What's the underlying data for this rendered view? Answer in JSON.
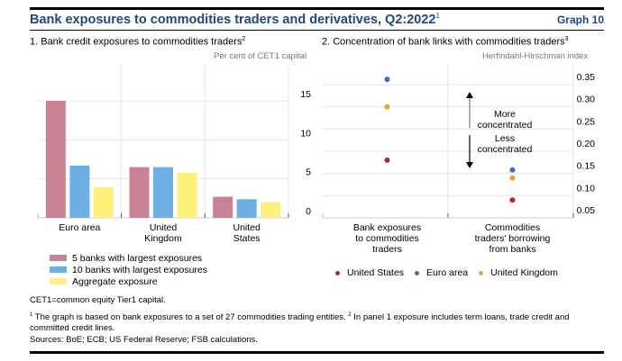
{
  "header": {
    "title": "Bank exposures to commodities traders and derivatives, Q2:2022",
    "title_footnote": "1",
    "graph_number": "Graph 10",
    "title_color": "#1F497D"
  },
  "panels": [
    {
      "title": "1. Bank credit exposures to commodities traders",
      "title_footnote": "2",
      "unit_label": "Per cent of CET1 capital"
    },
    {
      "title": "2. Concentration of bank links with commodities traders",
      "title_footnote": "3",
      "unit_label": "Herfindahl-Hirschman index",
      "annotation_up": [
        "More",
        "concentrated"
      ],
      "annotation_down": [
        "Less",
        "concentrated"
      ]
    }
  ],
  "chart_data": [
    {
      "type": "bar",
      "title": "1. Bank credit exposures to commodities traders",
      "ylabel": "Per cent of CET1 capital",
      "xlabel": "",
      "ylim": [
        0,
        17.5
      ],
      "yticks": [
        0,
        5,
        10,
        15
      ],
      "ytick_labels": [
        "0",
        "5",
        "10",
        "15"
      ],
      "y_axis_side": "right",
      "grid": true,
      "categories": [
        [
          "Euro area"
        ],
        [
          "United",
          "Kingdom"
        ],
        [
          "United",
          "States"
        ]
      ],
      "series": [
        {
          "name": "5 banks with largest exposures",
          "color": "#C88293",
          "values": [
            15.0,
            6.5,
            2.7
          ]
        },
        {
          "name": "10 banks with largest exposures",
          "color": "#6CB0E6",
          "values": [
            6.7,
            6.5,
            2.4
          ]
        },
        {
          "name": "Aggregate exposure",
          "color": "#FFF07A",
          "values": [
            3.9,
            5.8,
            2.0
          ]
        }
      ],
      "legend_position": "bottom-left"
    },
    {
      "type": "scatter",
      "title": "2. Concentration of bank links with commodities traders",
      "ylabel": "Herfindahl-Hirschman index",
      "xlabel": "",
      "ylim": [
        0.05,
        0.37
      ],
      "yticks": [
        0.05,
        0.1,
        0.15,
        0.2,
        0.25,
        0.3,
        0.35
      ],
      "ytick_labels": [
        "0.05",
        "0.10",
        "0.15",
        "0.20",
        "0.25",
        "0.30",
        "0.35"
      ],
      "y_axis_side": "right",
      "grid": true,
      "categories": [
        [
          "Bank exposures",
          "to commodities",
          "traders"
        ],
        [
          "Commodities",
          "traders' borrowing",
          "from banks"
        ]
      ],
      "series": [
        {
          "name": "United States",
          "color": "#B0282C",
          "values": [
            0.18,
            0.09
          ]
        },
        {
          "name": "Euro area",
          "color": "#3A6FB8",
          "values": [
            0.362,
            0.158
          ]
        },
        {
          "name": "United Kingdom",
          "color": "#F0A32A",
          "values": [
            0.3,
            0.14
          ]
        }
      ],
      "legend_position": "bottom"
    }
  ],
  "footnotes": {
    "abbrev": "CET1=common equity Tier1 capital.",
    "note1_mark": "1",
    "note1": " The graph is based on bank exposures to a set of 27 commodities trading entities.  ",
    "note2_mark": "2",
    "note2": " In panel 1 exposure includes term loans, trade credit and committed credit lines.",
    "sources": "Sources: BoE; ECB; US Federal Reserve; FSB calculations."
  }
}
